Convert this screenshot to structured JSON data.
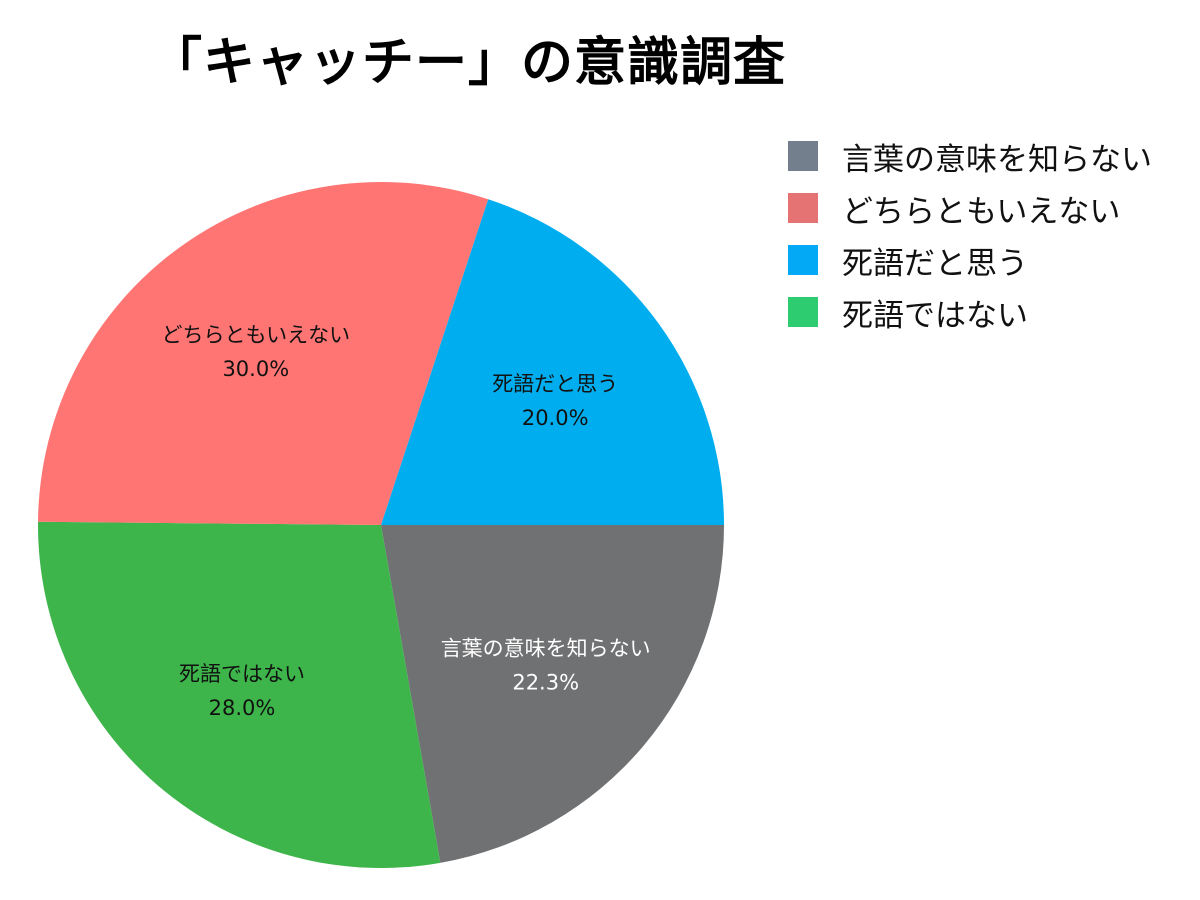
{
  "chart_data": {
    "type": "pie",
    "title": "「キャッチー」の意識調査",
    "slices": [
      {
        "label": "言葉の意味を知らない",
        "value": 22.3,
        "value_label": "22.3%",
        "color": "#707173",
        "legend_color": "#737f8c",
        "text_color": "#ffffff"
      },
      {
        "label": "死語ではない",
        "value": 28.0,
        "value_label": "28.0%",
        "color": "#3db54a",
        "legend_color": "#2ecc71",
        "text_color": "#111111"
      },
      {
        "label": "どちらともいえない",
        "value": 30.0,
        "value_label": "30.0%",
        "color": "#ff7574",
        "legend_color": "#e57373",
        "text_color": "#111111"
      },
      {
        "label": "死語だと思う",
        "value": 20.0,
        "value_label": "20.0%",
        "color": "#00aeef",
        "legend_color": "#03a9f4",
        "text_color": "#111111"
      }
    ],
    "legend": {
      "position": "top-right",
      "items": [
        {
          "label": "言葉の意味を知らない",
          "color": "#737f8c"
        },
        {
          "label": "どちらともいえない",
          "color": "#e57373"
        },
        {
          "label": "死語だと思う",
          "color": "#03a9f4"
        },
        {
          "label": "死語ではない",
          "color": "#2ecc71"
        }
      ]
    }
  }
}
